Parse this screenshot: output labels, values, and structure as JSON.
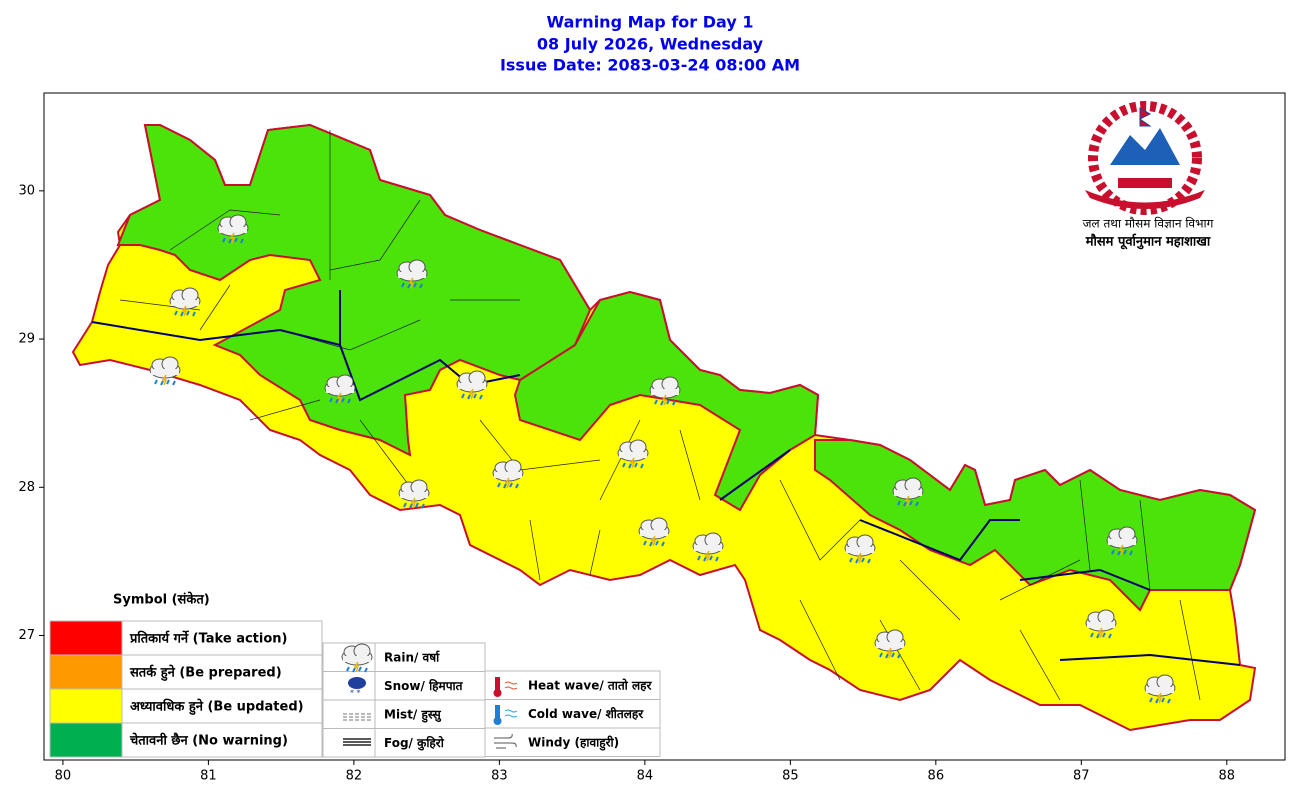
{
  "header": {
    "title": "Warning Map for Day 1",
    "date": "08 July 2026, Wednesday",
    "issue": "Issue Date: 2083-03-24 08:00 AM"
  },
  "agency": {
    "department": "जल तथा मौसम विज्ञान विभाग",
    "division": "मौसम पूर्वानुमान महाशाखा"
  },
  "map_axes": {
    "xlim": [
      79.87,
      88.4
    ],
    "ylim": [
      26.16,
      30.66
    ],
    "xticks": [
      80,
      81,
      82,
      83,
      84,
      85,
      86,
      87,
      88
    ],
    "yticks": [
      27,
      28,
      29,
      30
    ]
  },
  "legend": {
    "title": "Symbol (संकेत)",
    "warning_levels": [
      {
        "label": "प्रतिकार्य गर्ने (Take action)",
        "color": "#ff0000"
      },
      {
        "label": "सतर्क हुने (Be prepared)",
        "color": "#ff9900"
      },
      {
        "label": "अध्यावधिक हुने (Be updated)",
        "color": "#ffff00"
      },
      {
        "label": "चेतावनी छैन (No warning)",
        "color": "#00b050"
      }
    ],
    "weather_symbols": [
      "Rain/ वर्षा",
      "Snow/ हिमपात",
      "Mist/ हुस्सु",
      "Fog/ कुहिरो"
    ],
    "hazards": [
      "Heat wave/ तातो लहर",
      "Cold wave/ शीतलहर",
      "Windy (हावाहुरी)"
    ]
  }
}
